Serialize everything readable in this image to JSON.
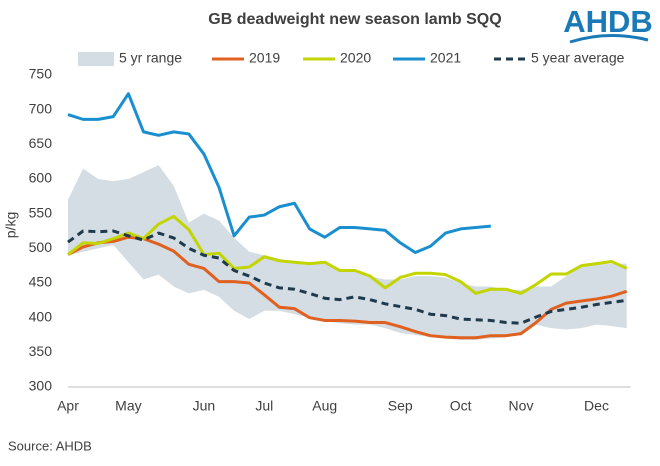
{
  "chart_data": {
    "type": "line",
    "title": "GB deadweight new season lamb SQQ",
    "logo": "AHDB",
    "source": "Source: AHDB",
    "ylabel": "p/kg",
    "categories": [
      "Apr",
      null,
      null,
      null,
      "May",
      null,
      null,
      null,
      null,
      "Jun",
      null,
      null,
      null,
      "Jul",
      null,
      null,
      null,
      "Aug",
      null,
      null,
      null,
      null,
      "Sep",
      null,
      null,
      null,
      "Oct",
      null,
      null,
      null,
      "Nov",
      null,
      null,
      null,
      null,
      "Dec",
      null,
      null
    ],
    "ylim": [
      300,
      750
    ],
    "yticks": [
      300,
      350,
      400,
      450,
      500,
      550,
      600,
      650,
      700,
      750
    ],
    "range": {
      "name": "5 yr range",
      "color": "#d3dde3",
      "high": [
        570,
        615,
        600,
        597,
        600,
        610,
        620,
        590,
        537,
        550,
        540,
        515,
        495,
        490,
        485,
        480,
        478,
        478,
        470,
        470,
        460,
        455,
        455,
        460,
        460,
        458,
        450,
        445,
        445,
        440,
        440,
        445,
        445,
        460,
        475,
        478,
        478,
        478
      ],
      "low": [
        490,
        495,
        500,
        505,
        480,
        455,
        462,
        445,
        435,
        440,
        430,
        410,
        398,
        410,
        410,
        405,
        400,
        395,
        392,
        390,
        390,
        385,
        378,
        375,
        372,
        370,
        368,
        368,
        370,
        372,
        375,
        390,
        385,
        383,
        385,
        390,
        388,
        385
      ]
    },
    "series": [
      {
        "name": "2019",
        "color": "#e0601f",
        "dash": false,
        "values": [
          491,
          502,
          508,
          510,
          516,
          514,
          506,
          496,
          477,
          471,
          452,
          452,
          450,
          433,
          415,
          413,
          400,
          396,
          396,
          395,
          393,
          393,
          387,
          380,
          374,
          372,
          371,
          371,
          374,
          374,
          377,
          393,
          412,
          421,
          424,
          427,
          431,
          438
        ]
      },
      {
        "name": "2020",
        "color": "#c3d500",
        "dash": false,
        "values": [
          491,
          508,
          507,
          514,
          522,
          514,
          535,
          546,
          527,
          491,
          493,
          471,
          473,
          488,
          482,
          480,
          478,
          480,
          468,
          468,
          460,
          443,
          458,
          464,
          464,
          462,
          452,
          435,
          441,
          441,
          435,
          448,
          463,
          463,
          475,
          478,
          481,
          471
        ]
      },
      {
        "name": "2021",
        "color": "#1a8fd0",
        "dash": false,
        "values": [
          693,
          686,
          686,
          690,
          723,
          668,
          663,
          668,
          665,
          636,
          588,
          518,
          545,
          548,
          560,
          565,
          528,
          516,
          530,
          530,
          528,
          526,
          508,
          494,
          503,
          522,
          528,
          530,
          532,
          null,
          null,
          null,
          null,
          null,
          null,
          null,
          null,
          null
        ]
      },
      {
        "name": "5 year average",
        "color": "#1f3a4d",
        "dash": true,
        "values": [
          509,
          525,
          524,
          525,
          518,
          512,
          522,
          515,
          500,
          490,
          486,
          468,
          460,
          450,
          443,
          441,
          435,
          428,
          426,
          430,
          426,
          420,
          416,
          412,
          405,
          403,
          398,
          397,
          396,
          393,
          392,
          401,
          409,
          412,
          415,
          419,
          422,
          425
        ]
      }
    ]
  }
}
